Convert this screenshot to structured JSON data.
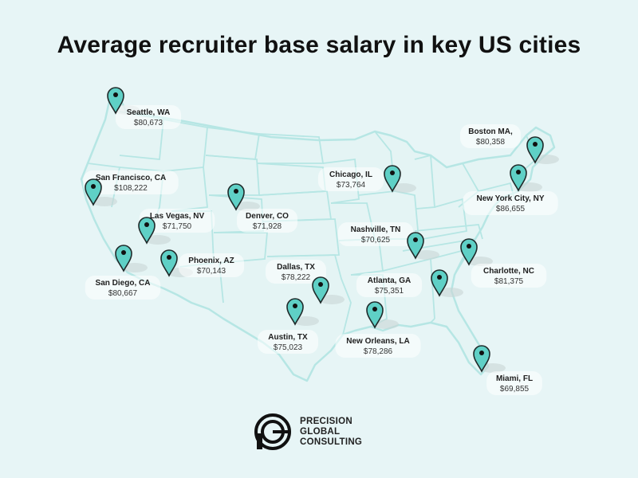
{
  "title": "Average recruiter base salary in key US cities",
  "colors": {
    "background": "#e7f5f6",
    "map_outline": "#b6e6e4",
    "pin_fill": "#5fd0c6",
    "pin_stroke": "#1f2a2a"
  },
  "icons": {
    "pin": "map-pin-icon",
    "logo": "pgc-logo-icon"
  },
  "cities": [
    {
      "id": "seattle",
      "name": "Seattle, WA",
      "salary": "$80,673"
    },
    {
      "id": "san-francisco",
      "name": "San Francisco, CA",
      "salary": "$108,222"
    },
    {
      "id": "las-vegas",
      "name": "Las Vegas, NV",
      "salary": "$71,750"
    },
    {
      "id": "denver",
      "name": "Denver, CO",
      "salary": "$71,928"
    },
    {
      "id": "phoenix",
      "name": "Phoenix, AZ",
      "salary": "$70,143"
    },
    {
      "id": "san-diego",
      "name": "San Diego, CA",
      "salary": "$80,667"
    },
    {
      "id": "dallas",
      "name": "Dallas, TX",
      "salary": "$78,222"
    },
    {
      "id": "austin",
      "name": "Austin, TX",
      "salary": "$75,023"
    },
    {
      "id": "new-orleans",
      "name": "New Orleans, LA",
      "salary": "$78,286"
    },
    {
      "id": "chicago",
      "name": "Chicago, IL",
      "salary": "$73,764"
    },
    {
      "id": "nashville",
      "name": "Nashville, TN",
      "salary": "$70,625"
    },
    {
      "id": "atlanta",
      "name": "Atlanta, GA",
      "salary": "$75,351"
    },
    {
      "id": "charlotte",
      "name": "Charlotte, NC",
      "salary": "$81,375"
    },
    {
      "id": "miami",
      "name": "Miami, FL",
      "salary": "$69,855"
    },
    {
      "id": "new-york",
      "name": "New York City, NY",
      "salary": "$86,655"
    },
    {
      "id": "boston",
      "name": "Boston MA,",
      "salary": "$80,358"
    }
  ],
  "logo": {
    "line1": "PRECISION",
    "line2": "GLOBAL",
    "line3": "CONSULTING"
  }
}
